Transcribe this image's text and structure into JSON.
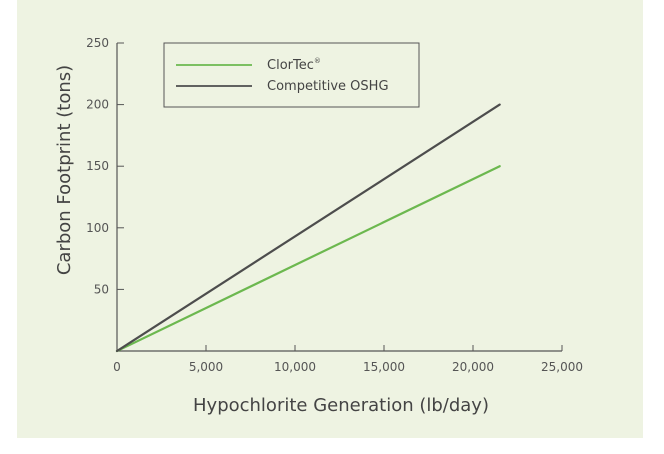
{
  "chart_data": {
    "type": "line",
    "title": "",
    "xlabel": "Hypochlorite Generation (lb/day)",
    "ylabel": "Carbon Footprint (tons)",
    "xlim": [
      0,
      25000
    ],
    "ylim": [
      0,
      250
    ],
    "x_ticks": [
      0,
      5000,
      10000,
      15000,
      20000,
      25000
    ],
    "x_tick_labels": [
      "0",
      "5,000",
      "10,000",
      "15,000",
      "20,000",
      "25,000"
    ],
    "y_ticks": [
      50,
      100,
      150,
      200,
      250
    ],
    "y_tick_labels": [
      "50",
      "100",
      "150",
      "200",
      "250"
    ],
    "grid": false,
    "legend_position": "top-left",
    "series": [
      {
        "name": "ClorTec",
        "name_superscript": "®",
        "color": "#6cb84f",
        "x": [
          0,
          21500
        ],
        "y": [
          0,
          150
        ]
      },
      {
        "name": "Competitive OSHG",
        "name_superscript": "",
        "color": "#4d4d4d",
        "x": [
          0,
          21500
        ],
        "y": [
          0,
          200
        ]
      }
    ]
  }
}
